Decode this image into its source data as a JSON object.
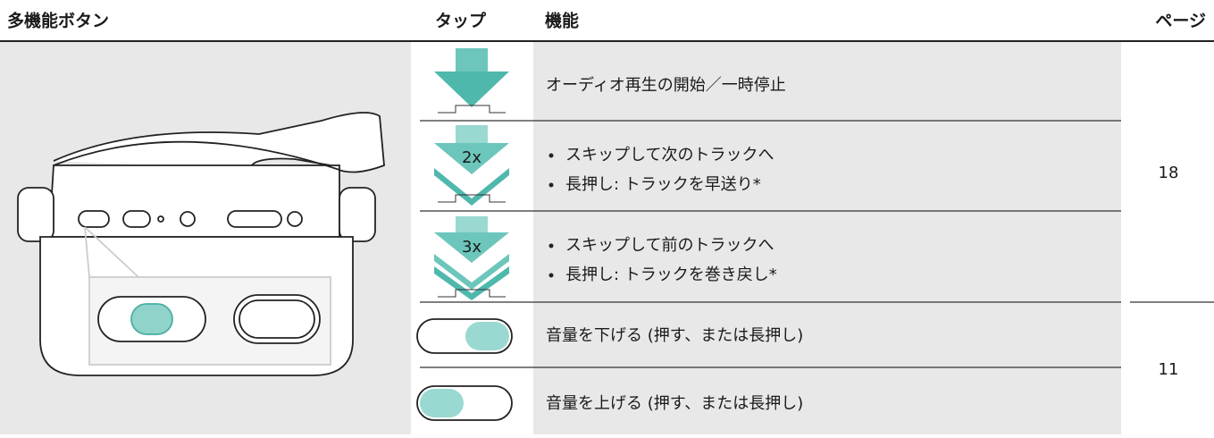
{
  "header": {
    "columns": [
      "多機能ボタン",
      "タップ",
      "機能",
      "ページ"
    ]
  },
  "rows": [
    {
      "function": [
        "オーディオ再生の開始／一時停止"
      ]
    },
    {
      "tap_label": "2x",
      "function": [
        "スキップして次のトラックへ",
        "長押し: トラックを早送り*"
      ]
    },
    {
      "tap_label": "3x",
      "function": [
        "スキップして前のトラックへ",
        "長押し: トラックを巻き戻し*"
      ]
    },
    {
      "function": [
        "音量を下げる (押す、または長押し)"
      ]
    },
    {
      "function": [
        "音量を上げる (押す、または長押し)"
      ]
    }
  ],
  "pages": [
    "18",
    "11"
  ]
}
